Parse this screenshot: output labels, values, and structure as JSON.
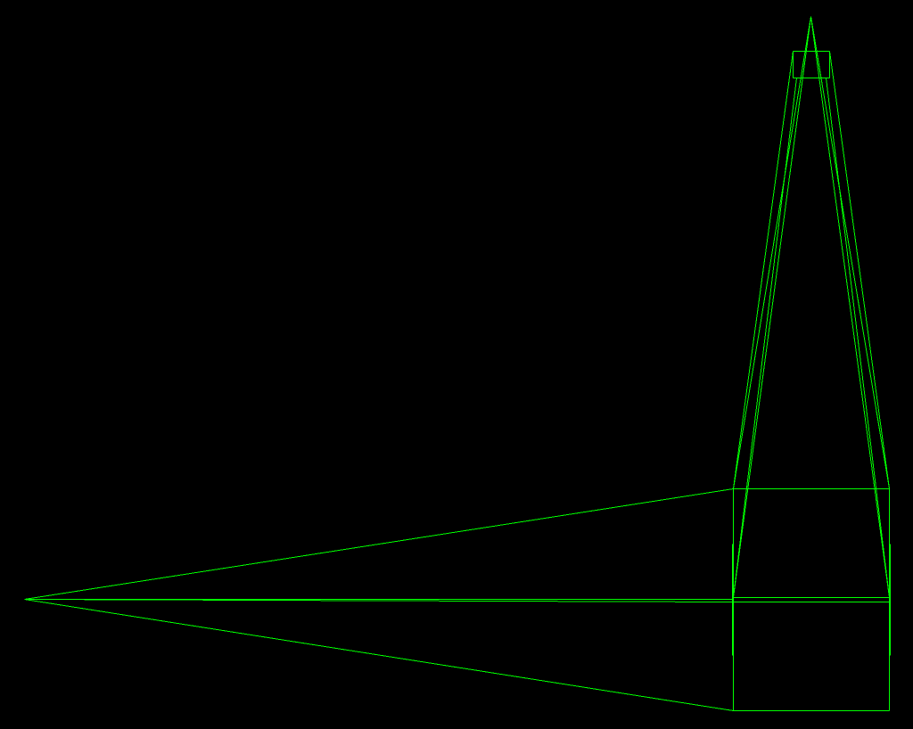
{
  "scene": {
    "background_color": "#000000",
    "wire_color": "#00ff00",
    "render_mode": "wireframe",
    "objects": [
      {
        "name": "horizontal-spike",
        "description_type": "tapered-prism"
      },
      {
        "name": "vertical-spire",
        "description_type": "tapered-prism"
      },
      {
        "name": "base-block",
        "description_type": "box"
      },
      {
        "name": "spire-cap",
        "description_type": "box"
      }
    ]
  }
}
